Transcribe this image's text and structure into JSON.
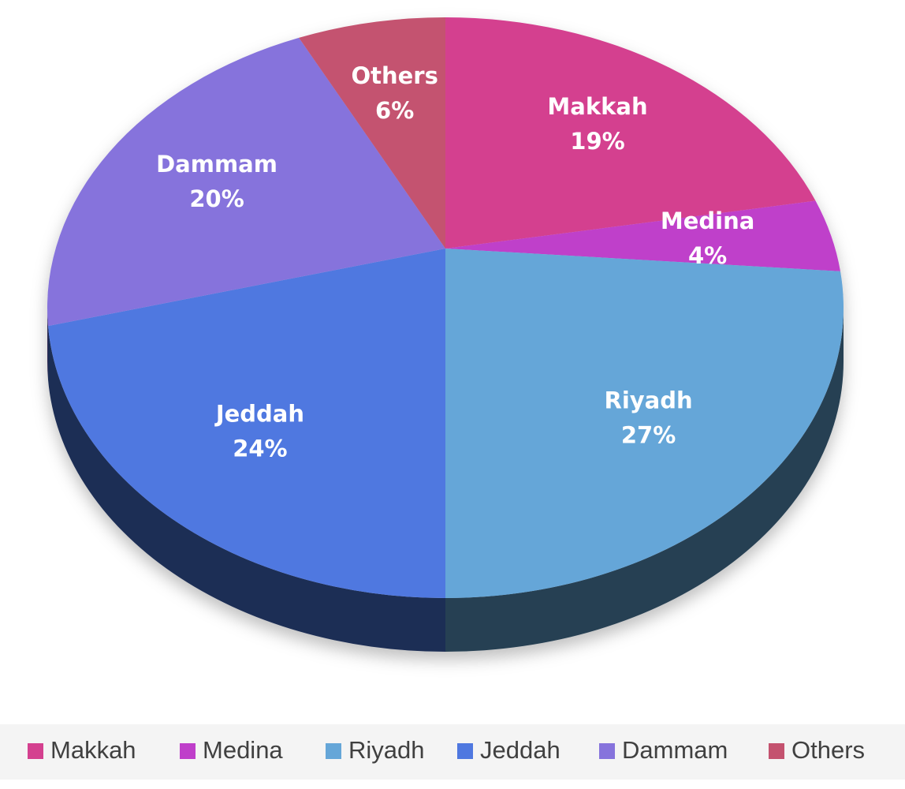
{
  "chart_data": {
    "type": "pie",
    "categories": [
      "Makkah",
      "Medina",
      "Riyadh",
      "Jeddah",
      "Dammam",
      "Others"
    ],
    "values": [
      19,
      4,
      27,
      24,
      20,
      6
    ],
    "value_labels": [
      "19%",
      "4%",
      "27%",
      "24%",
      "20%",
      "6%"
    ],
    "colors": [
      "#d4408f",
      "#bf3fca",
      "#65a6d8",
      "#4f78e0",
      "#8673dc",
      "#c4526f"
    ],
    "legend": "bottom"
  }
}
